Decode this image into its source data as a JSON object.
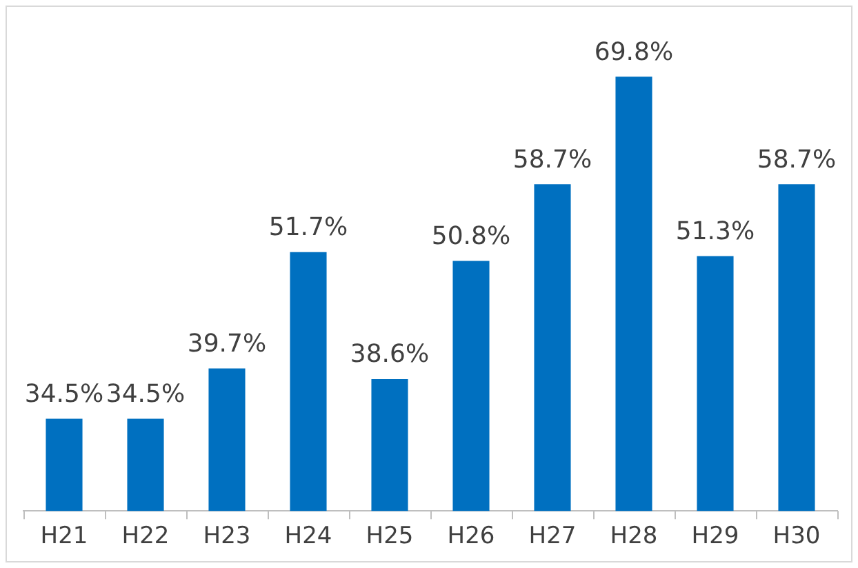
{
  "chart_data": {
    "type": "bar",
    "categories": [
      "H21",
      "H22",
      "H23",
      "H24",
      "H25",
      "H26",
      "H27",
      "H28",
      "H29",
      "H30"
    ],
    "values": [
      34.5,
      34.5,
      39.7,
      51.7,
      38.6,
      50.8,
      58.7,
      69.8,
      51.3,
      58.7
    ],
    "value_labels": [
      "34.5%",
      "34.5%",
      "39.7%",
      "51.7%",
      "38.6%",
      "50.8%",
      "58.7%",
      "69.8%",
      "51.3%",
      "58.7%"
    ],
    "color": "#0070c0",
    "ylim": [
      25,
      77
    ],
    "grid": false,
    "legend": false
  }
}
